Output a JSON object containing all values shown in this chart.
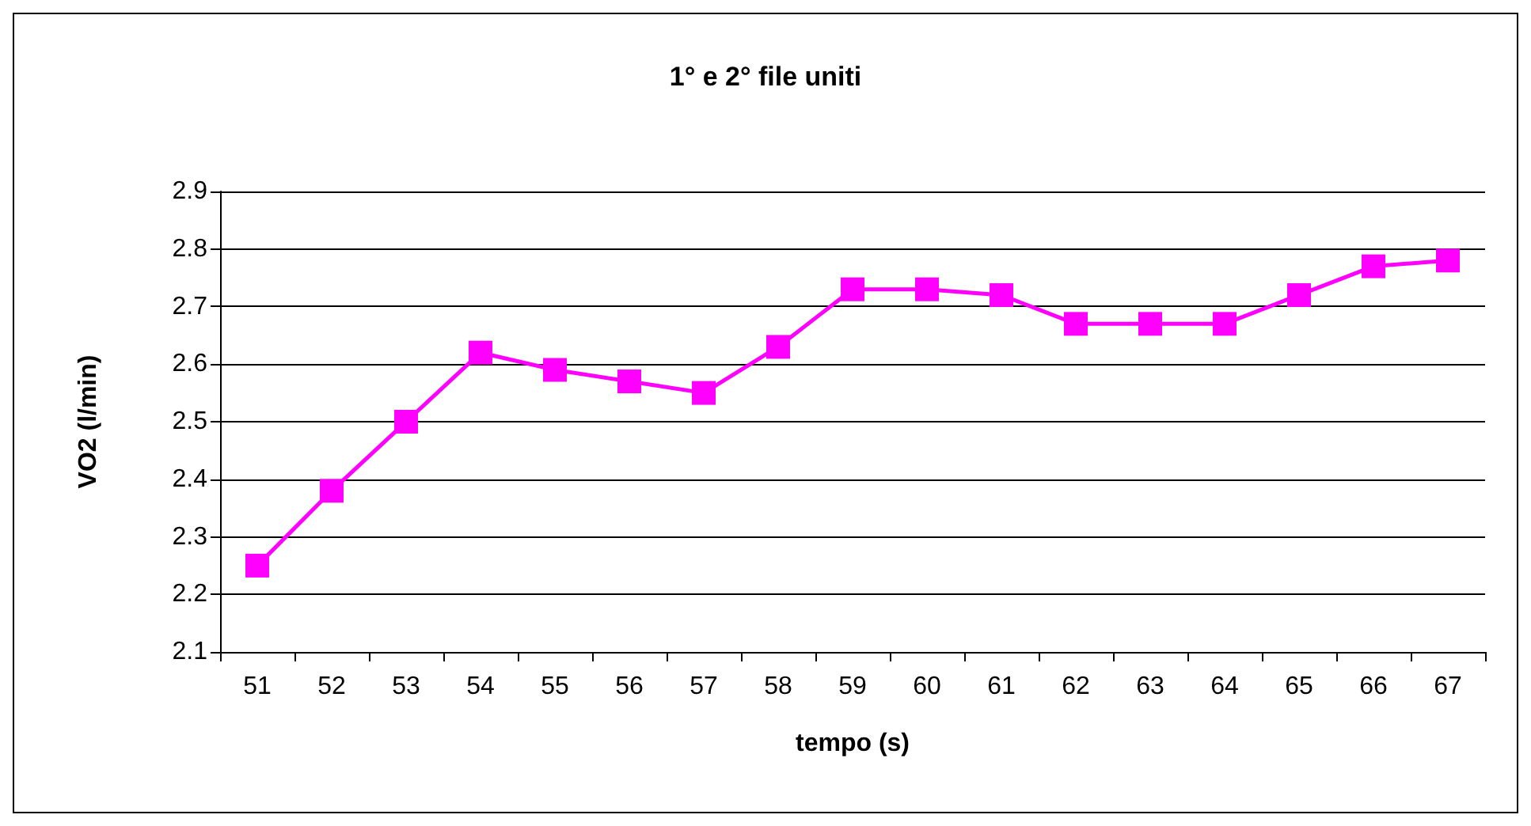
{
  "chart_data": {
    "type": "line",
    "title": "1° e 2° file uniti",
    "xlabel": "tempo (s)",
    "ylabel": "VO2 (l/min)",
    "categories": [
      "51",
      "52",
      "53",
      "54",
      "55",
      "56",
      "57",
      "58",
      "59",
      "60",
      "61",
      "62",
      "63",
      "64",
      "65",
      "66",
      "67"
    ],
    "series": [
      {
        "color": "#ff00ff",
        "values": [
          2.25,
          2.38,
          2.5,
          2.62,
          2.59,
          2.57,
          2.55,
          2.63,
          2.73,
          2.73,
          2.72,
          2.67,
          2.67,
          2.67,
          2.72,
          2.77,
          2.78
        ]
      }
    ],
    "ylim": [
      2.1,
      2.9
    ],
    "yticks": [
      2.1,
      2.2,
      2.3,
      2.4,
      2.5,
      2.6,
      2.7,
      2.8,
      2.9
    ],
    "grid": "y",
    "marker": "square",
    "line_style": "solid"
  }
}
